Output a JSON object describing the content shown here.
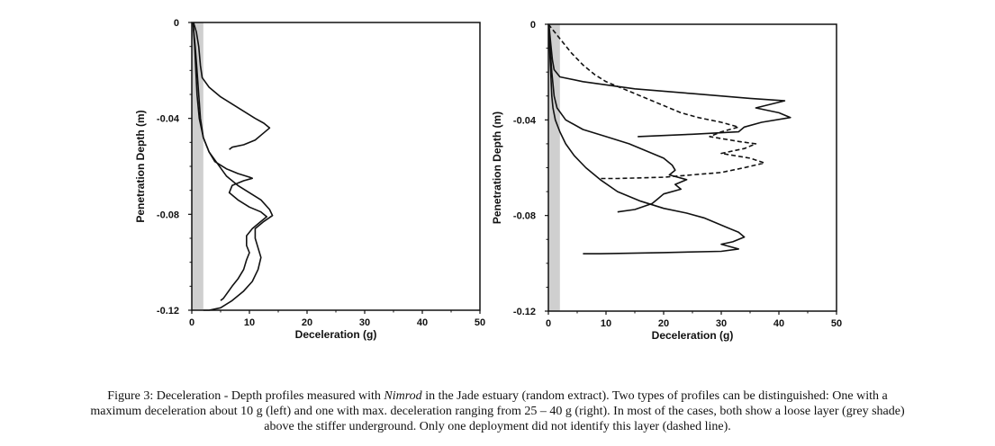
{
  "caption": {
    "lines": [
      {
        "pre": "Figure 3: Deceleration - Depth profiles measured with ",
        "em": "Nimrod",
        "post": " in the Jade estuary (random extract). Two types of profiles can be distinguished: One with a"
      },
      {
        "pre": "maximum deceleration about 10 g (left) and one with max. deceleration ranging from 25 – 40 g (right). In most of the cases, both show a loose layer (grey shade)",
        "em": "",
        "post": ""
      },
      {
        "pre": "above the stiffer underground. Only one deployment did not identify this layer (dashed line).",
        "em": "",
        "post": ""
      }
    ]
  },
  "chart_data": [
    {
      "type": "line",
      "xlabel": "Deceleration (g)",
      "ylabel": "Penetration Depth (m)",
      "xlim": [
        0,
        50
      ],
      "ylim": [
        -0.12,
        0
      ],
      "xticks": [
        "0",
        "10",
        "20",
        "30",
        "40",
        "50"
      ],
      "yticks": [
        "0",
        "-0.04",
        "-0.08",
        "-0.12"
      ],
      "grey_band": [
        0,
        2
      ],
      "series": [
        {
          "style": "solid",
          "points": [
            [
              0.3,
              0
            ],
            [
              0.8,
              -0.004
            ],
            [
              1.2,
              -0.01
            ],
            [
              1.5,
              -0.018
            ],
            [
              1.8,
              -0.023
            ],
            [
              3,
              -0.027
            ],
            [
              5,
              -0.031
            ],
            [
              7,
              -0.034
            ],
            [
              9,
              -0.037
            ],
            [
              11,
              -0.04
            ],
            [
              12.5,
              -0.042
            ],
            [
              13.5,
              -0.044
            ],
            [
              12.5,
              -0.046
            ],
            [
              11,
              -0.049
            ],
            [
              9,
              -0.051
            ],
            [
              7,
              -0.052
            ],
            [
              6.5,
              -0.053
            ]
          ]
        },
        {
          "style": "solid",
          "points": [
            [
              0.2,
              0
            ],
            [
              0.6,
              -0.01
            ],
            [
              0.9,
              -0.02
            ],
            [
              1.2,
              -0.03
            ],
            [
              1.5,
              -0.04
            ],
            [
              2,
              -0.048
            ],
            [
              3,
              -0.054
            ],
            [
              4,
              -0.058
            ],
            [
              6,
              -0.061
            ],
            [
              8,
              -0.063
            ],
            [
              10,
              -0.0645
            ],
            [
              10.5,
              -0.065
            ],
            [
              9,
              -0.066
            ],
            [
              7,
              -0.068
            ],
            [
              6.5,
              -0.071
            ],
            [
              8,
              -0.074
            ],
            [
              10,
              -0.077
            ],
            [
              12,
              -0.079
            ],
            [
              13,
              -0.081
            ],
            [
              12,
              -0.083
            ],
            [
              10.5,
              -0.086
            ],
            [
              9.5,
              -0.089
            ],
            [
              9.5,
              -0.093
            ],
            [
              10,
              -0.096
            ],
            [
              9.5,
              -0.099
            ],
            [
              9,
              -0.103
            ],
            [
              8,
              -0.107
            ],
            [
              7,
              -0.11
            ],
            [
              5.5,
              -0.115
            ],
            [
              5,
              -0.116
            ]
          ]
        },
        {
          "style": "solid",
          "points": [
            [
              0.2,
              0
            ],
            [
              0.5,
              -0.01
            ],
            [
              0.7,
              -0.02
            ],
            [
              0.9,
              -0.03
            ],
            [
              1.3,
              -0.04
            ],
            [
              2,
              -0.048
            ],
            [
              3,
              -0.054
            ],
            [
              4.5,
              -0.059
            ],
            [
              6,
              -0.064
            ],
            [
              8,
              -0.068
            ],
            [
              10,
              -0.071
            ],
            [
              12,
              -0.074
            ],
            [
              13.5,
              -0.078
            ],
            [
              14,
              -0.0805
            ],
            [
              12.5,
              -0.083
            ],
            [
              11,
              -0.086
            ],
            [
              11,
              -0.09
            ],
            [
              11.5,
              -0.094
            ],
            [
              12,
              -0.098
            ],
            [
              11.5,
              -0.103
            ],
            [
              10.5,
              -0.108
            ],
            [
              9,
              -0.112
            ],
            [
              7,
              -0.116
            ],
            [
              5,
              -0.119
            ],
            [
              3,
              -0.12
            ],
            [
              2,
              -0.12
            ]
          ]
        }
      ]
    },
    {
      "type": "line",
      "xlabel": "Deceleration (g)",
      "ylabel": "Penetration Depth (m)",
      "xlim": [
        0,
        50
      ],
      "ylim": [
        -0.12,
        0
      ],
      "xticks": [
        "0",
        "10",
        "20",
        "30",
        "40",
        "50"
      ],
      "yticks": [
        "0",
        "-0.04",
        "-0.08",
        "-0.12"
      ],
      "grey_band": [
        0,
        2
      ],
      "series": [
        {
          "style": "solid",
          "points": [
            [
              0.1,
              0
            ],
            [
              0.4,
              -0.008
            ],
            [
              0.7,
              -0.015
            ],
            [
              1,
              -0.019
            ],
            [
              2,
              -0.022
            ],
            [
              6,
              -0.024
            ],
            [
              15,
              -0.027
            ],
            [
              25,
              -0.029
            ],
            [
              35,
              -0.031
            ],
            [
              41,
              -0.032
            ],
            [
              36,
              -0.035
            ],
            [
              40,
              -0.037
            ],
            [
              42,
              -0.039
            ],
            [
              37,
              -0.041
            ],
            [
              34,
              -0.043
            ],
            [
              33,
              -0.045
            ],
            [
              25,
              -0.046
            ],
            [
              15.5,
              -0.047
            ]
          ]
        },
        {
          "style": "dashed",
          "points": [
            [
              0,
              0
            ],
            [
              2,
              -0.006
            ],
            [
              4,
              -0.012
            ],
            [
              6,
              -0.017
            ],
            [
              8,
              -0.021
            ],
            [
              10,
              -0.024
            ],
            [
              12,
              -0.026
            ],
            [
              14,
              -0.028
            ],
            [
              17,
              -0.031
            ],
            [
              20,
              -0.034
            ],
            [
              23,
              -0.037
            ],
            [
              26,
              -0.039
            ],
            [
              30,
              -0.041
            ],
            [
              33,
              -0.043
            ],
            [
              30,
              -0.045
            ],
            [
              28,
              -0.047
            ],
            [
              33,
              -0.049
            ],
            [
              36,
              -0.05
            ],
            [
              34,
              -0.052
            ],
            [
              30,
              -0.054
            ],
            [
              35,
              -0.056
            ],
            [
              37.5,
              -0.058
            ],
            [
              34,
              -0.06
            ],
            [
              30,
              -0.062
            ],
            [
              20,
              -0.064
            ],
            [
              12,
              -0.0645
            ],
            [
              9,
              -0.0645
            ]
          ]
        },
        {
          "style": "solid",
          "points": [
            [
              0.1,
              0
            ],
            [
              0.3,
              -0.01
            ],
            [
              0.6,
              -0.02
            ],
            [
              1,
              -0.03
            ],
            [
              1.5,
              -0.035
            ],
            [
              3,
              -0.04
            ],
            [
              6,
              -0.044
            ],
            [
              10,
              -0.047
            ],
            [
              14,
              -0.05
            ],
            [
              17,
              -0.053
            ],
            [
              20,
              -0.056
            ],
            [
              21.5,
              -0.059
            ],
            [
              22,
              -0.061
            ],
            [
              21,
              -0.063
            ],
            [
              24,
              -0.065
            ],
            [
              22,
              -0.067
            ],
            [
              23,
              -0.069
            ],
            [
              20,
              -0.071
            ],
            [
              19,
              -0.073
            ],
            [
              18,
              -0.075
            ],
            [
              15,
              -0.0775
            ],
            [
              12,
              -0.0785
            ]
          ]
        },
        {
          "style": "solid",
          "points": [
            [
              0.1,
              0
            ],
            [
              0.2,
              -0.01
            ],
            [
              0.4,
              -0.02
            ],
            [
              0.6,
              -0.03
            ],
            [
              0.8,
              -0.035
            ],
            [
              1.2,
              -0.04
            ],
            [
              2,
              -0.045
            ],
            [
              3,
              -0.05
            ],
            [
              4.5,
              -0.055
            ],
            [
              6.5,
              -0.06
            ],
            [
              9,
              -0.065
            ],
            [
              12,
              -0.07
            ],
            [
              16,
              -0.074
            ],
            [
              20,
              -0.077
            ],
            [
              24,
              -0.079
            ],
            [
              27,
              -0.081
            ],
            [
              29,
              -0.083
            ],
            [
              31,
              -0.085
            ],
            [
              33,
              -0.087
            ],
            [
              34,
              -0.089
            ],
            [
              32,
              -0.091
            ],
            [
              30,
              -0.092
            ],
            [
              33,
              -0.094
            ],
            [
              30,
              -0.095
            ],
            [
              20,
              -0.0955
            ],
            [
              9,
              -0.096
            ],
            [
              6,
              -0.096
            ]
          ]
        }
      ]
    }
  ]
}
